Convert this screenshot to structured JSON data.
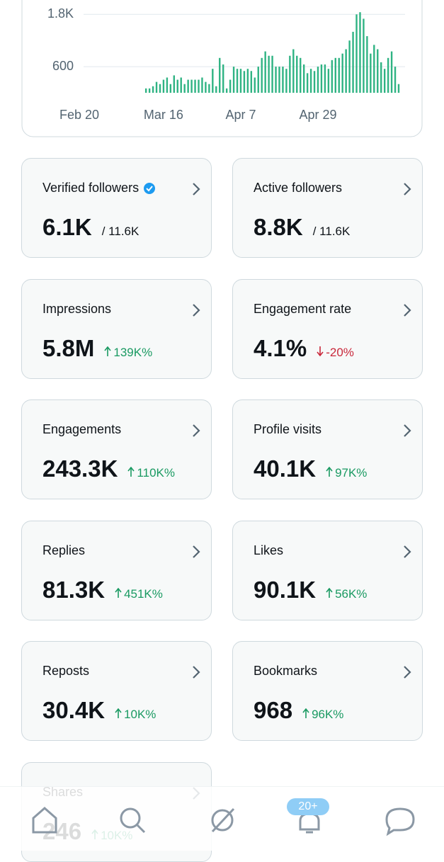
{
  "chart_data": {
    "type": "bar",
    "categories": [
      "Feb 20",
      null,
      null,
      null,
      null,
      null,
      null,
      null,
      null,
      null,
      null,
      null,
      null,
      null,
      null,
      null,
      null,
      null,
      null,
      null,
      null,
      null,
      null,
      null,
      "Mar 16",
      null,
      null,
      null,
      null,
      null,
      null,
      null,
      null,
      null,
      null,
      null,
      null,
      null,
      null,
      null,
      null,
      null,
      null,
      null,
      null,
      null,
      "Apr 7",
      null,
      null,
      null,
      null,
      null,
      null,
      null,
      null,
      null,
      null,
      null,
      null,
      null,
      null,
      null,
      null,
      null,
      null,
      null,
      null,
      null,
      "Apr 29",
      null,
      null,
      null,
      null,
      null,
      null,
      null,
      null,
      null,
      null,
      null,
      null,
      null,
      null,
      null,
      null,
      null,
      null,
      null,
      null,
      null,
      null,
      null
    ],
    "values": [
      null,
      null,
      null,
      null,
      null,
      null,
      null,
      null,
      null,
      null,
      null,
      null,
      null,
      null,
      null,
      null,
      null,
      null,
      null,
      100,
      100,
      150,
      250,
      200,
      300,
      350,
      200,
      400,
      300,
      350,
      200,
      300,
      300,
      300,
      300,
      350,
      250,
      200,
      550,
      150,
      800,
      650,
      100,
      300,
      600,
      550,
      550,
      500,
      550,
      500,
      350,
      600,
      800,
      950,
      850,
      850,
      600,
      600,
      600,
      550,
      850,
      1000,
      850,
      800,
      650,
      450,
      550,
      500,
      600,
      650,
      650,
      550,
      750,
      800,
      800,
      900,
      1000,
      1200,
      1400,
      1800,
      1850,
      1700,
      1300,
      900,
      1100,
      1000,
      700,
      550,
      800,
      950,
      600,
      200
    ],
    "color": "#2fb383",
    "ylim": [
      0,
      2000
    ],
    "yticks": [
      600,
      {
        "value": 1800,
        "label": "1.8K"
      }
    ],
    "grid": true
  },
  "cards": [
    {
      "label": "Verified followers",
      "verified": true,
      "value": "6.1K",
      "total": "/ 11.6K"
    },
    {
      "label": "Active followers",
      "value": "8.8K",
      "total": "/ 11.6K"
    },
    {
      "label": "Impressions",
      "value": "5.8M",
      "change": "139K%",
      "direction": "up"
    },
    {
      "label": "Engagement rate",
      "value": "4.1%",
      "change": "-20%",
      "direction": "down"
    },
    {
      "label": "Engagements",
      "value": "243.3K",
      "change": "110K%",
      "direction": "up"
    },
    {
      "label": "Profile visits",
      "value": "40.1K",
      "change": "97K%",
      "direction": "up"
    },
    {
      "label": "Replies",
      "value": "81.3K",
      "change": "451K%",
      "direction": "up"
    },
    {
      "label": "Likes",
      "value": "90.1K",
      "change": "56K%",
      "direction": "up"
    },
    {
      "label": "Reposts",
      "value": "30.4K",
      "change": "10K%",
      "direction": "up"
    },
    {
      "label": "Bookmarks",
      "value": "968",
      "change": "96K%",
      "direction": "up"
    },
    {
      "label": "Shares",
      "value": "246",
      "change": "10K%",
      "direction": "up"
    }
  ],
  "change_colors": {
    "up": "#1a9a62",
    "down": "#c9283b"
  },
  "nav": {
    "badge": "20+"
  }
}
